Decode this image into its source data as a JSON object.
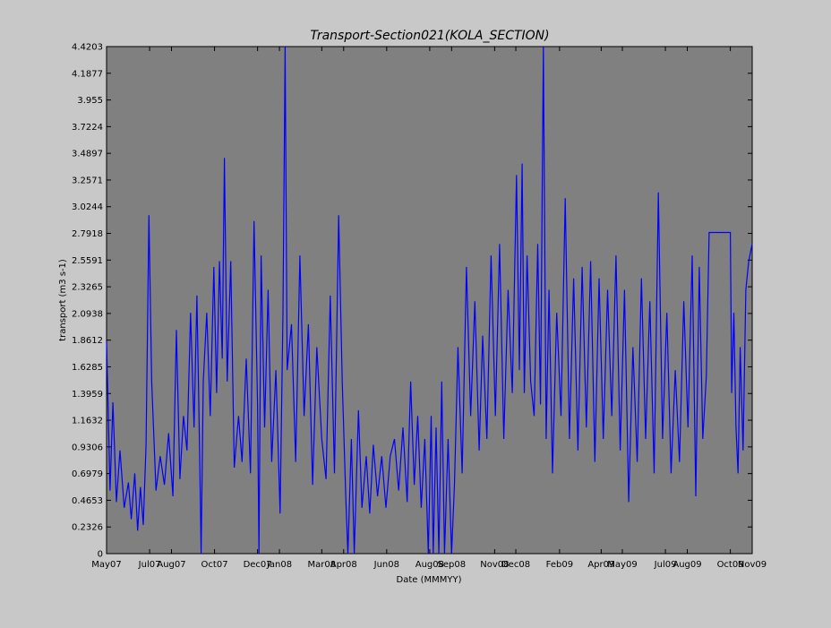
{
  "chart_data": {
    "type": "line",
    "title": "Transport-Section021(KOLA_SECTION)",
    "xlabel": "Date (MMMYY)",
    "ylabel": "transport (m3 s-1)",
    "ylim": [
      0,
      4.4203
    ],
    "xlim": [
      "2007-05-01",
      "2009-11-01"
    ],
    "grid": false,
    "legend": "none",
    "colors": {
      "background": "#c8c8c8",
      "plot_area": "#808080",
      "series": "#0000ff"
    },
    "y_ticks": [
      "0",
      "0.2326",
      "0.4653",
      "0.6979",
      "0.9306",
      "1.1632",
      "1.3959",
      "1.6285",
      "1.8612",
      "2.0938",
      "2.3265",
      "2.5591",
      "2.7918",
      "3.0244",
      "3.2571",
      "3.4897",
      "3.7224",
      "3.955",
      "4.1877",
      "4.4203"
    ],
    "x_ticks": [
      {
        "date": "2007-05-01",
        "label": "May07"
      },
      {
        "date": "2007-07-01",
        "label": "Jul07"
      },
      {
        "date": "2007-08-01",
        "label": "Aug07"
      },
      {
        "date": "2007-10-01",
        "label": "Oct07"
      },
      {
        "date": "2007-12-01",
        "label": "Dec07"
      },
      {
        "date": "2008-01-01",
        "label": "Jan08"
      },
      {
        "date": "2008-03-01",
        "label": "Mar08"
      },
      {
        "date": "2008-04-01",
        "label": "Apr08"
      },
      {
        "date": "2008-06-01",
        "label": "Jun08"
      },
      {
        "date": "2008-08-01",
        "label": "Aug08"
      },
      {
        "date": "2008-09-01",
        "label": "Sep08"
      },
      {
        "date": "2008-11-01",
        "label": "Nov08"
      },
      {
        "date": "2008-12-01",
        "label": "Dec08"
      },
      {
        "date": "2009-02-01",
        "label": "Feb09"
      },
      {
        "date": "2009-04-01",
        "label": "Apr09"
      },
      {
        "date": "2009-05-01",
        "label": "May09"
      },
      {
        "date": "2009-07-01",
        "label": "Jul09"
      },
      {
        "date": "2009-08-01",
        "label": "Aug09"
      },
      {
        "date": "2009-10-01",
        "label": "Oct09"
      },
      {
        "date": "2009-11-01",
        "label": "Nov09"
      }
    ],
    "series": [
      {
        "points": [
          [
            "2007-05-01",
            1.85
          ],
          [
            "2007-05-06",
            0.55
          ],
          [
            "2007-05-10",
            1.32
          ],
          [
            "2007-05-15",
            0.45
          ],
          [
            "2007-05-20",
            0.9
          ],
          [
            "2007-05-26",
            0.4
          ],
          [
            "2007-06-01",
            0.62
          ],
          [
            "2007-06-05",
            0.3
          ],
          [
            "2007-06-10",
            0.7
          ],
          [
            "2007-06-14",
            0.2
          ],
          [
            "2007-06-18",
            0.58
          ],
          [
            "2007-06-22",
            0.25
          ],
          [
            "2007-06-26",
            0.95
          ],
          [
            "2007-06-30",
            2.95
          ],
          [
            "2007-07-04",
            1.5
          ],
          [
            "2007-07-10",
            0.55
          ],
          [
            "2007-07-16",
            0.85
          ],
          [
            "2007-07-22",
            0.6
          ],
          [
            "2007-07-28",
            1.05
          ],
          [
            "2007-08-03",
            0.5
          ],
          [
            "2007-08-08",
            1.95
          ],
          [
            "2007-08-13",
            0.65
          ],
          [
            "2007-08-18",
            1.2
          ],
          [
            "2007-08-23",
            0.9
          ],
          [
            "2007-08-28",
            2.1
          ],
          [
            "2007-09-02",
            1.1
          ],
          [
            "2007-09-06",
            2.25
          ],
          [
            "2007-09-10",
            0.85
          ],
          [
            "2007-09-12",
            0.0
          ],
          [
            "2007-09-15",
            1.5
          ],
          [
            "2007-09-20",
            2.1
          ],
          [
            "2007-09-25",
            1.2
          ],
          [
            "2007-09-30",
            2.5
          ],
          [
            "2007-10-04",
            1.4
          ],
          [
            "2007-10-08",
            2.55
          ],
          [
            "2007-10-12",
            1.7
          ],
          [
            "2007-10-15",
            3.45
          ],
          [
            "2007-10-19",
            1.5
          ],
          [
            "2007-10-24",
            2.55
          ],
          [
            "2007-10-29",
            0.75
          ],
          [
            "2007-11-04",
            1.2
          ],
          [
            "2007-11-09",
            0.8
          ],
          [
            "2007-11-15",
            1.7
          ],
          [
            "2007-11-21",
            0.7
          ],
          [
            "2007-11-26",
            2.9
          ],
          [
            "2007-12-01",
            1.3
          ],
          [
            "2007-12-03",
            0.0
          ],
          [
            "2007-12-06",
            2.6
          ],
          [
            "2007-12-11",
            1.1
          ],
          [
            "2007-12-16",
            2.3
          ],
          [
            "2007-12-21",
            0.8
          ],
          [
            "2007-12-27",
            1.6
          ],
          [
            "2008-01-02",
            0.35
          ],
          [
            "2008-01-06",
            2.1
          ],
          [
            "2008-01-09",
            4.42
          ],
          [
            "2008-01-12",
            1.6
          ],
          [
            "2008-01-18",
            2.0
          ],
          [
            "2008-01-24",
            0.8
          ],
          [
            "2008-01-30",
            2.6
          ],
          [
            "2008-02-05",
            1.2
          ],
          [
            "2008-02-11",
            2.0
          ],
          [
            "2008-02-17",
            0.6
          ],
          [
            "2008-02-23",
            1.8
          ],
          [
            "2008-03-01",
            1.0
          ],
          [
            "2008-03-07",
            0.65
          ],
          [
            "2008-03-13",
            2.25
          ],
          [
            "2008-03-19",
            0.7
          ],
          [
            "2008-03-25",
            2.95
          ],
          [
            "2008-03-30",
            1.5
          ],
          [
            "2008-04-04",
            0.5
          ],
          [
            "2008-04-07",
            0.0
          ],
          [
            "2008-04-12",
            1.0
          ],
          [
            "2008-04-16",
            0.0
          ],
          [
            "2008-04-22",
            1.25
          ],
          [
            "2008-04-27",
            0.4
          ],
          [
            "2008-05-03",
            0.85
          ],
          [
            "2008-05-08",
            0.35
          ],
          [
            "2008-05-13",
            0.95
          ],
          [
            "2008-05-19",
            0.5
          ],
          [
            "2008-05-25",
            0.85
          ],
          [
            "2008-05-31",
            0.4
          ],
          [
            "2008-06-06",
            0.85
          ],
          [
            "2008-06-12",
            1.0
          ],
          [
            "2008-06-18",
            0.55
          ],
          [
            "2008-06-24",
            1.1
          ],
          [
            "2008-06-30",
            0.45
          ],
          [
            "2008-07-05",
            1.5
          ],
          [
            "2008-07-10",
            0.6
          ],
          [
            "2008-07-15",
            1.2
          ],
          [
            "2008-07-20",
            0.4
          ],
          [
            "2008-07-25",
            1.0
          ],
          [
            "2008-07-30",
            0.0
          ],
          [
            "2008-08-03",
            1.2
          ],
          [
            "2008-08-06",
            0.0
          ],
          [
            "2008-08-10",
            1.1
          ],
          [
            "2008-08-14",
            0.0
          ],
          [
            "2008-08-18",
            1.5
          ],
          [
            "2008-08-22",
            0.0
          ],
          [
            "2008-08-27",
            1.0
          ],
          [
            "2008-09-01",
            0.0
          ],
          [
            "2008-09-05",
            0.6
          ],
          [
            "2008-09-10",
            1.8
          ],
          [
            "2008-09-16",
            0.7
          ],
          [
            "2008-09-22",
            2.5
          ],
          [
            "2008-09-28",
            1.2
          ],
          [
            "2008-10-04",
            2.2
          ],
          [
            "2008-10-10",
            0.9
          ],
          [
            "2008-10-15",
            1.9
          ],
          [
            "2008-10-21",
            1.0
          ],
          [
            "2008-10-27",
            2.6
          ],
          [
            "2008-11-02",
            1.2
          ],
          [
            "2008-11-08",
            2.7
          ],
          [
            "2008-11-14",
            1.0
          ],
          [
            "2008-11-20",
            2.3
          ],
          [
            "2008-11-26",
            1.4
          ],
          [
            "2008-12-02",
            3.3
          ],
          [
            "2008-12-06",
            1.6
          ],
          [
            "2008-12-10",
            3.4
          ],
          [
            "2008-12-13",
            1.4
          ],
          [
            "2008-12-17",
            2.6
          ],
          [
            "2008-12-22",
            1.5
          ],
          [
            "2008-12-27",
            1.2
          ],
          [
            "2009-01-01",
            2.7
          ],
          [
            "2009-01-05",
            1.3
          ],
          [
            "2009-01-09",
            4.42
          ],
          [
            "2009-01-13",
            1.0
          ],
          [
            "2009-01-17",
            2.3
          ],
          [
            "2009-01-22",
            0.7
          ],
          [
            "2009-01-28",
            2.1
          ],
          [
            "2009-02-03",
            1.2
          ],
          [
            "2009-02-09",
            3.1
          ],
          [
            "2009-02-15",
            1.0
          ],
          [
            "2009-02-21",
            2.4
          ],
          [
            "2009-02-27",
            0.9
          ],
          [
            "2009-03-05",
            2.5
          ],
          [
            "2009-03-11",
            1.1
          ],
          [
            "2009-03-17",
            2.55
          ],
          [
            "2009-03-23",
            0.8
          ],
          [
            "2009-03-29",
            2.4
          ],
          [
            "2009-04-04",
            1.0
          ],
          [
            "2009-04-10",
            2.3
          ],
          [
            "2009-04-16",
            1.2
          ],
          [
            "2009-04-22",
            2.6
          ],
          [
            "2009-04-28",
            0.9
          ],
          [
            "2009-05-04",
            2.3
          ],
          [
            "2009-05-10",
            0.45
          ],
          [
            "2009-05-16",
            1.8
          ],
          [
            "2009-05-22",
            0.8
          ],
          [
            "2009-05-28",
            2.4
          ],
          [
            "2009-06-03",
            1.0
          ],
          [
            "2009-06-09",
            2.2
          ],
          [
            "2009-06-15",
            0.7
          ],
          [
            "2009-06-21",
            3.15
          ],
          [
            "2009-06-27",
            1.0
          ],
          [
            "2009-07-03",
            2.1
          ],
          [
            "2009-07-09",
            0.7
          ],
          [
            "2009-07-15",
            1.6
          ],
          [
            "2009-07-21",
            0.8
          ],
          [
            "2009-07-27",
            2.2
          ],
          [
            "2009-08-02",
            1.1
          ],
          [
            "2009-08-08",
            2.6
          ],
          [
            "2009-08-13",
            0.5
          ],
          [
            "2009-08-18",
            2.5
          ],
          [
            "2009-08-23",
            1.0
          ],
          [
            "2009-08-28",
            1.55
          ],
          [
            "2009-09-01",
            2.8
          ],
          [
            "2009-10-01",
            2.8
          ],
          [
            "2009-10-03",
            1.4
          ],
          [
            "2009-10-06",
            2.1
          ],
          [
            "2009-10-09",
            1.1
          ],
          [
            "2009-10-12",
            0.7
          ],
          [
            "2009-10-15",
            1.8
          ],
          [
            "2009-10-19",
            0.9
          ],
          [
            "2009-10-23",
            2.3
          ],
          [
            "2009-10-27",
            2.55
          ],
          [
            "2009-11-01",
            2.7
          ]
        ]
      }
    ]
  }
}
